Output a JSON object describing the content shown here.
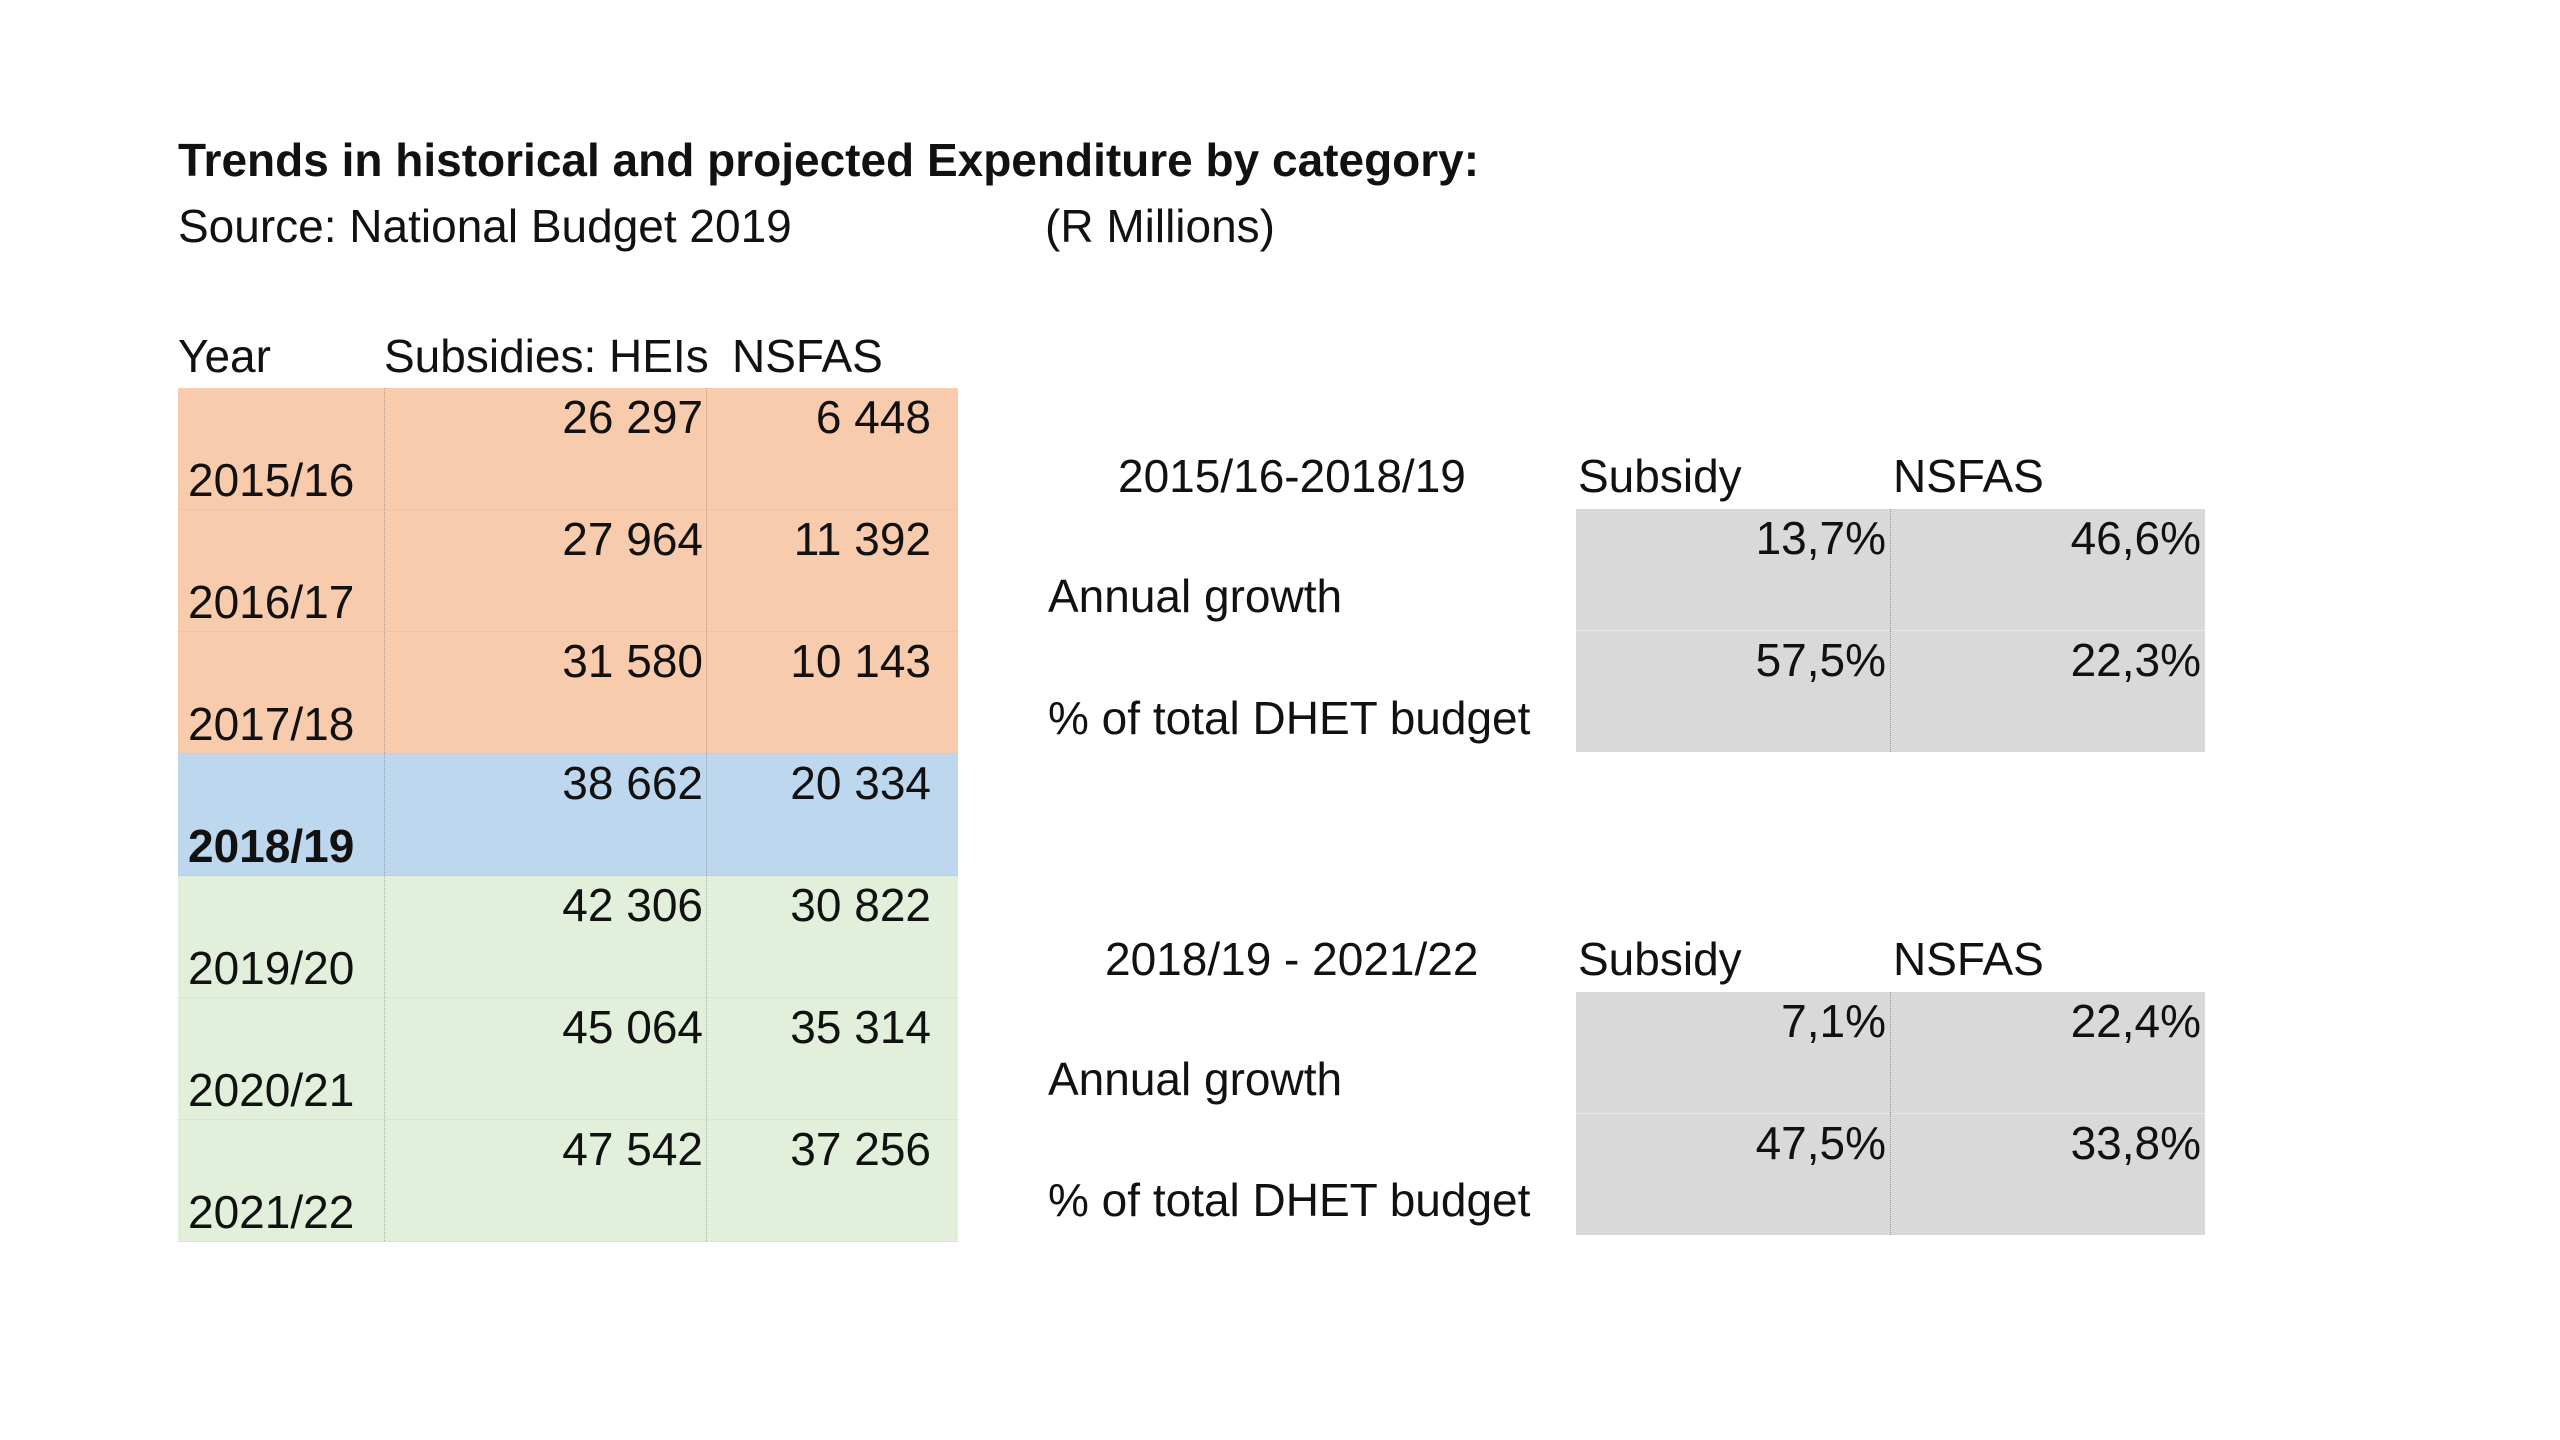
{
  "title": "Trends in historical and projected Expenditure by category:",
  "source": "Source: National Budget 2019",
  "units": "(R Millions)",
  "main_table": {
    "headers": {
      "year": "Year",
      "subsidies": "Subsidies: HEIs",
      "nsfas": "NSFAS"
    },
    "rows": [
      {
        "year": "2015/16",
        "subsidies": "26 297",
        "nsfas": "6 448",
        "period": "historical"
      },
      {
        "year": "2016/17",
        "subsidies": "27 964",
        "nsfas": "11 392",
        "period": "historical"
      },
      {
        "year": "2017/18",
        "subsidies": "31 580",
        "nsfas": "10 143",
        "period": "historical"
      },
      {
        "year": "2018/19",
        "subsidies": "38 662",
        "nsfas": "20 334",
        "period": "base"
      },
      {
        "year": "2019/20",
        "subsidies": "42 306",
        "nsfas": "30 822",
        "period": "projected"
      },
      {
        "year": "2020/21",
        "subsidies": "45 064",
        "nsfas": "35 314",
        "period": "projected"
      },
      {
        "year": "2021/22",
        "subsidies": "47 542",
        "nsfas": "37 256",
        "period": "projected"
      }
    ]
  },
  "summary_tables": [
    {
      "period": "2015/16-2018/19",
      "col_subsidy": "Subsidy",
      "col_nsfas": "NSFAS",
      "rows": [
        {
          "label": "Annual growth",
          "subsidy": "13,7%",
          "nsfas": "46,6%"
        },
        {
          "label": "% of total DHET budget",
          "subsidy": "57,5%",
          "nsfas": "22,3%"
        }
      ]
    },
    {
      "period": "2018/19 - 2021/22",
      "col_subsidy": "Subsidy",
      "col_nsfas": "NSFAS",
      "rows": [
        {
          "label": "Annual growth",
          "subsidy": "7,1%",
          "nsfas": "22,4%"
        },
        {
          "label": "% of total DHET budget",
          "subsidy": "47,5%",
          "nsfas": "33,8%"
        }
      ]
    }
  ],
  "colors": {
    "historical": "#f8cbad",
    "base": "#bdd7ee",
    "projected": "#e2efda",
    "summary_fill": "#d9d9d9"
  }
}
